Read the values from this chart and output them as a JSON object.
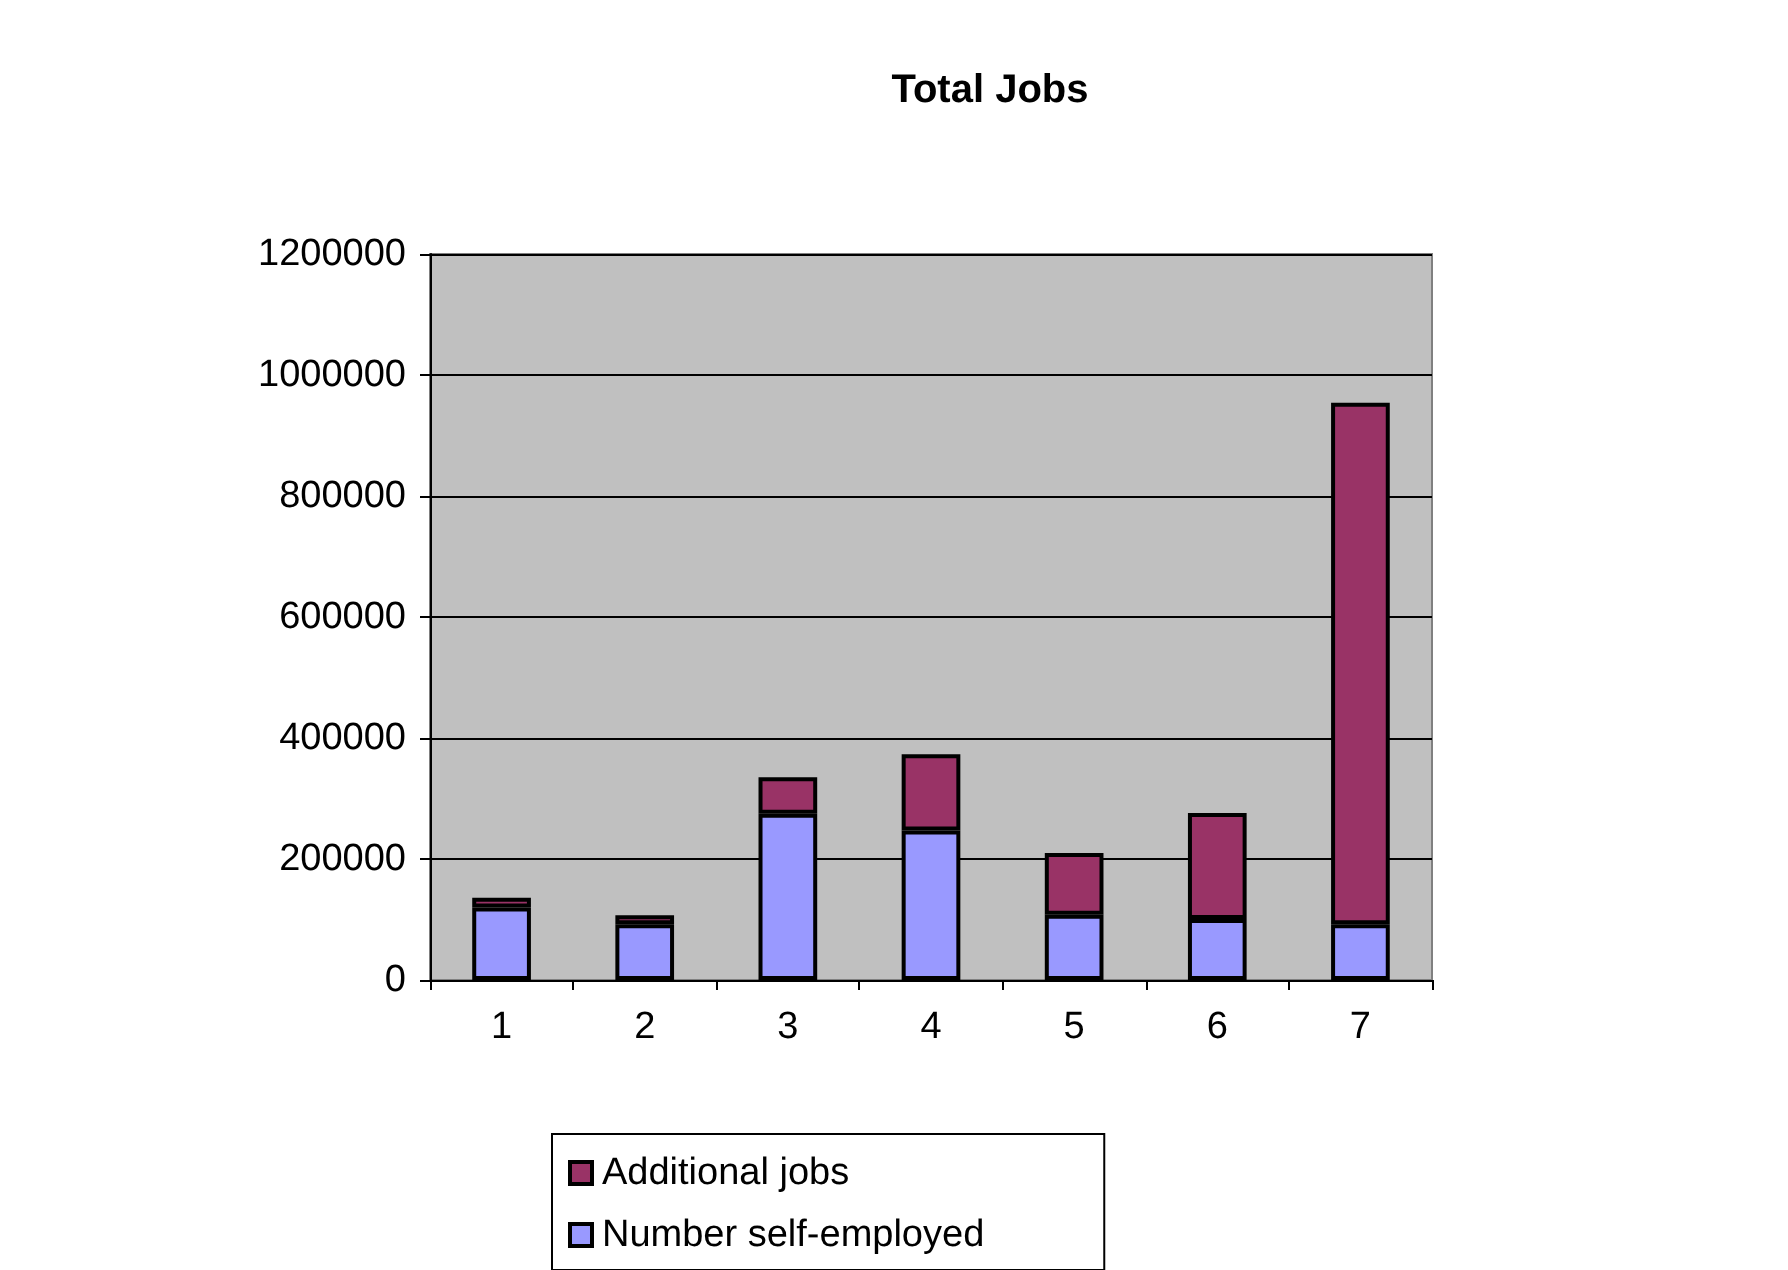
{
  "chart_data": {
    "type": "bar",
    "title": "Total Jobs",
    "categories": [
      "1",
      "2",
      "3",
      "4",
      "5",
      "6",
      "7"
    ],
    "stacked": true,
    "series": [
      {
        "name": "Number self-employed",
        "color": "#9999ff",
        "values": [
          120000,
          92000,
          275000,
          247000,
          108000,
          101000,
          92000
        ]
      },
      {
        "name": "Additional jobs",
        "color": "#993366",
        "values": [
          16000,
          15000,
          60000,
          126000,
          102000,
          175000,
          862000
        ]
      }
    ],
    "ylim": [
      0,
      1200000
    ],
    "yticks": [
      0,
      200000,
      400000,
      600000,
      800000,
      1000000,
      1200000
    ],
    "grid": "y",
    "legend": "bottom"
  }
}
